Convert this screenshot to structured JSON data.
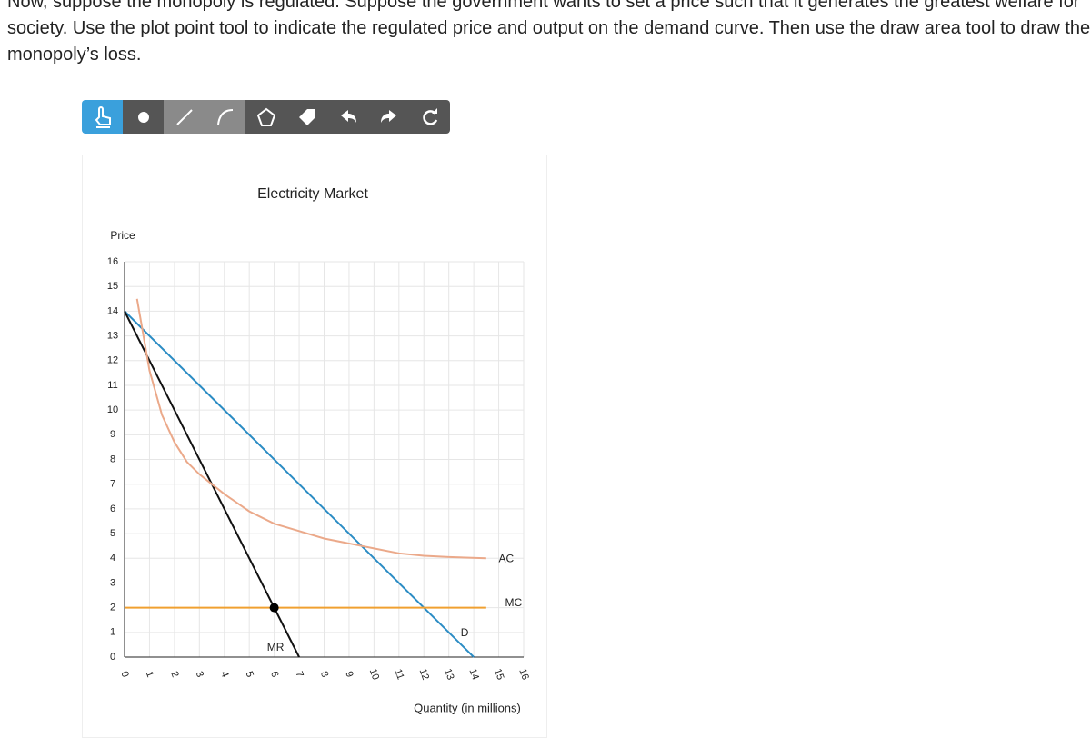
{
  "question": {
    "lines": [
      "Now, suppose the monopoly is regulated. Suppose the government wants to set a price such that it generates the greatest welfare for",
      "society. Use the plot point tool to indicate the regulated price and output on the demand curve. Then use the draw area tool to draw the",
      "monopoly’s loss."
    ]
  },
  "chart_data": {
    "type": "line",
    "title": "Electricity Market",
    "y_label": "Price",
    "x_label": "Quantity (in millions)",
    "xlim": [
      0,
      16
    ],
    "ylim": [
      0,
      16
    ],
    "xticks": [
      0,
      1,
      2,
      3,
      4,
      5,
      6,
      7,
      8,
      9,
      10,
      11,
      12,
      13,
      14,
      15,
      16
    ],
    "yticks": [
      0,
      1,
      2,
      3,
      4,
      5,
      6,
      7,
      8,
      9,
      10,
      11,
      12,
      13,
      14,
      15,
      16
    ],
    "grid": true,
    "series": [
      {
        "name": "D",
        "color": "#2b8cc4",
        "x": [
          0,
          14
        ],
        "values": [
          14,
          0
        ]
      },
      {
        "name": "MR",
        "color": "#111111",
        "x": [
          0,
          7
        ],
        "values": [
          14,
          0
        ]
      },
      {
        "name": "MC",
        "color": "#f0a030",
        "x": [
          0,
          14.5
        ],
        "values": [
          2,
          2
        ]
      },
      {
        "name": "AC",
        "color": "#eba98a",
        "x": [
          0.5,
          1,
          1.5,
          2,
          2.5,
          3,
          3.5,
          4,
          5,
          6,
          7,
          8,
          9,
          10,
          11,
          12,
          13,
          14.5
        ],
        "values": [
          14.5,
          11.6,
          9.8,
          8.7,
          7.9,
          7.4,
          7,
          6.6,
          5.9,
          5.4,
          5.1,
          4.8,
          4.6,
          4.4,
          4.2,
          4.1,
          4.05,
          4
        ]
      }
    ],
    "point": {
      "x": 6,
      "y": 2,
      "color": "#000000"
    }
  }
}
